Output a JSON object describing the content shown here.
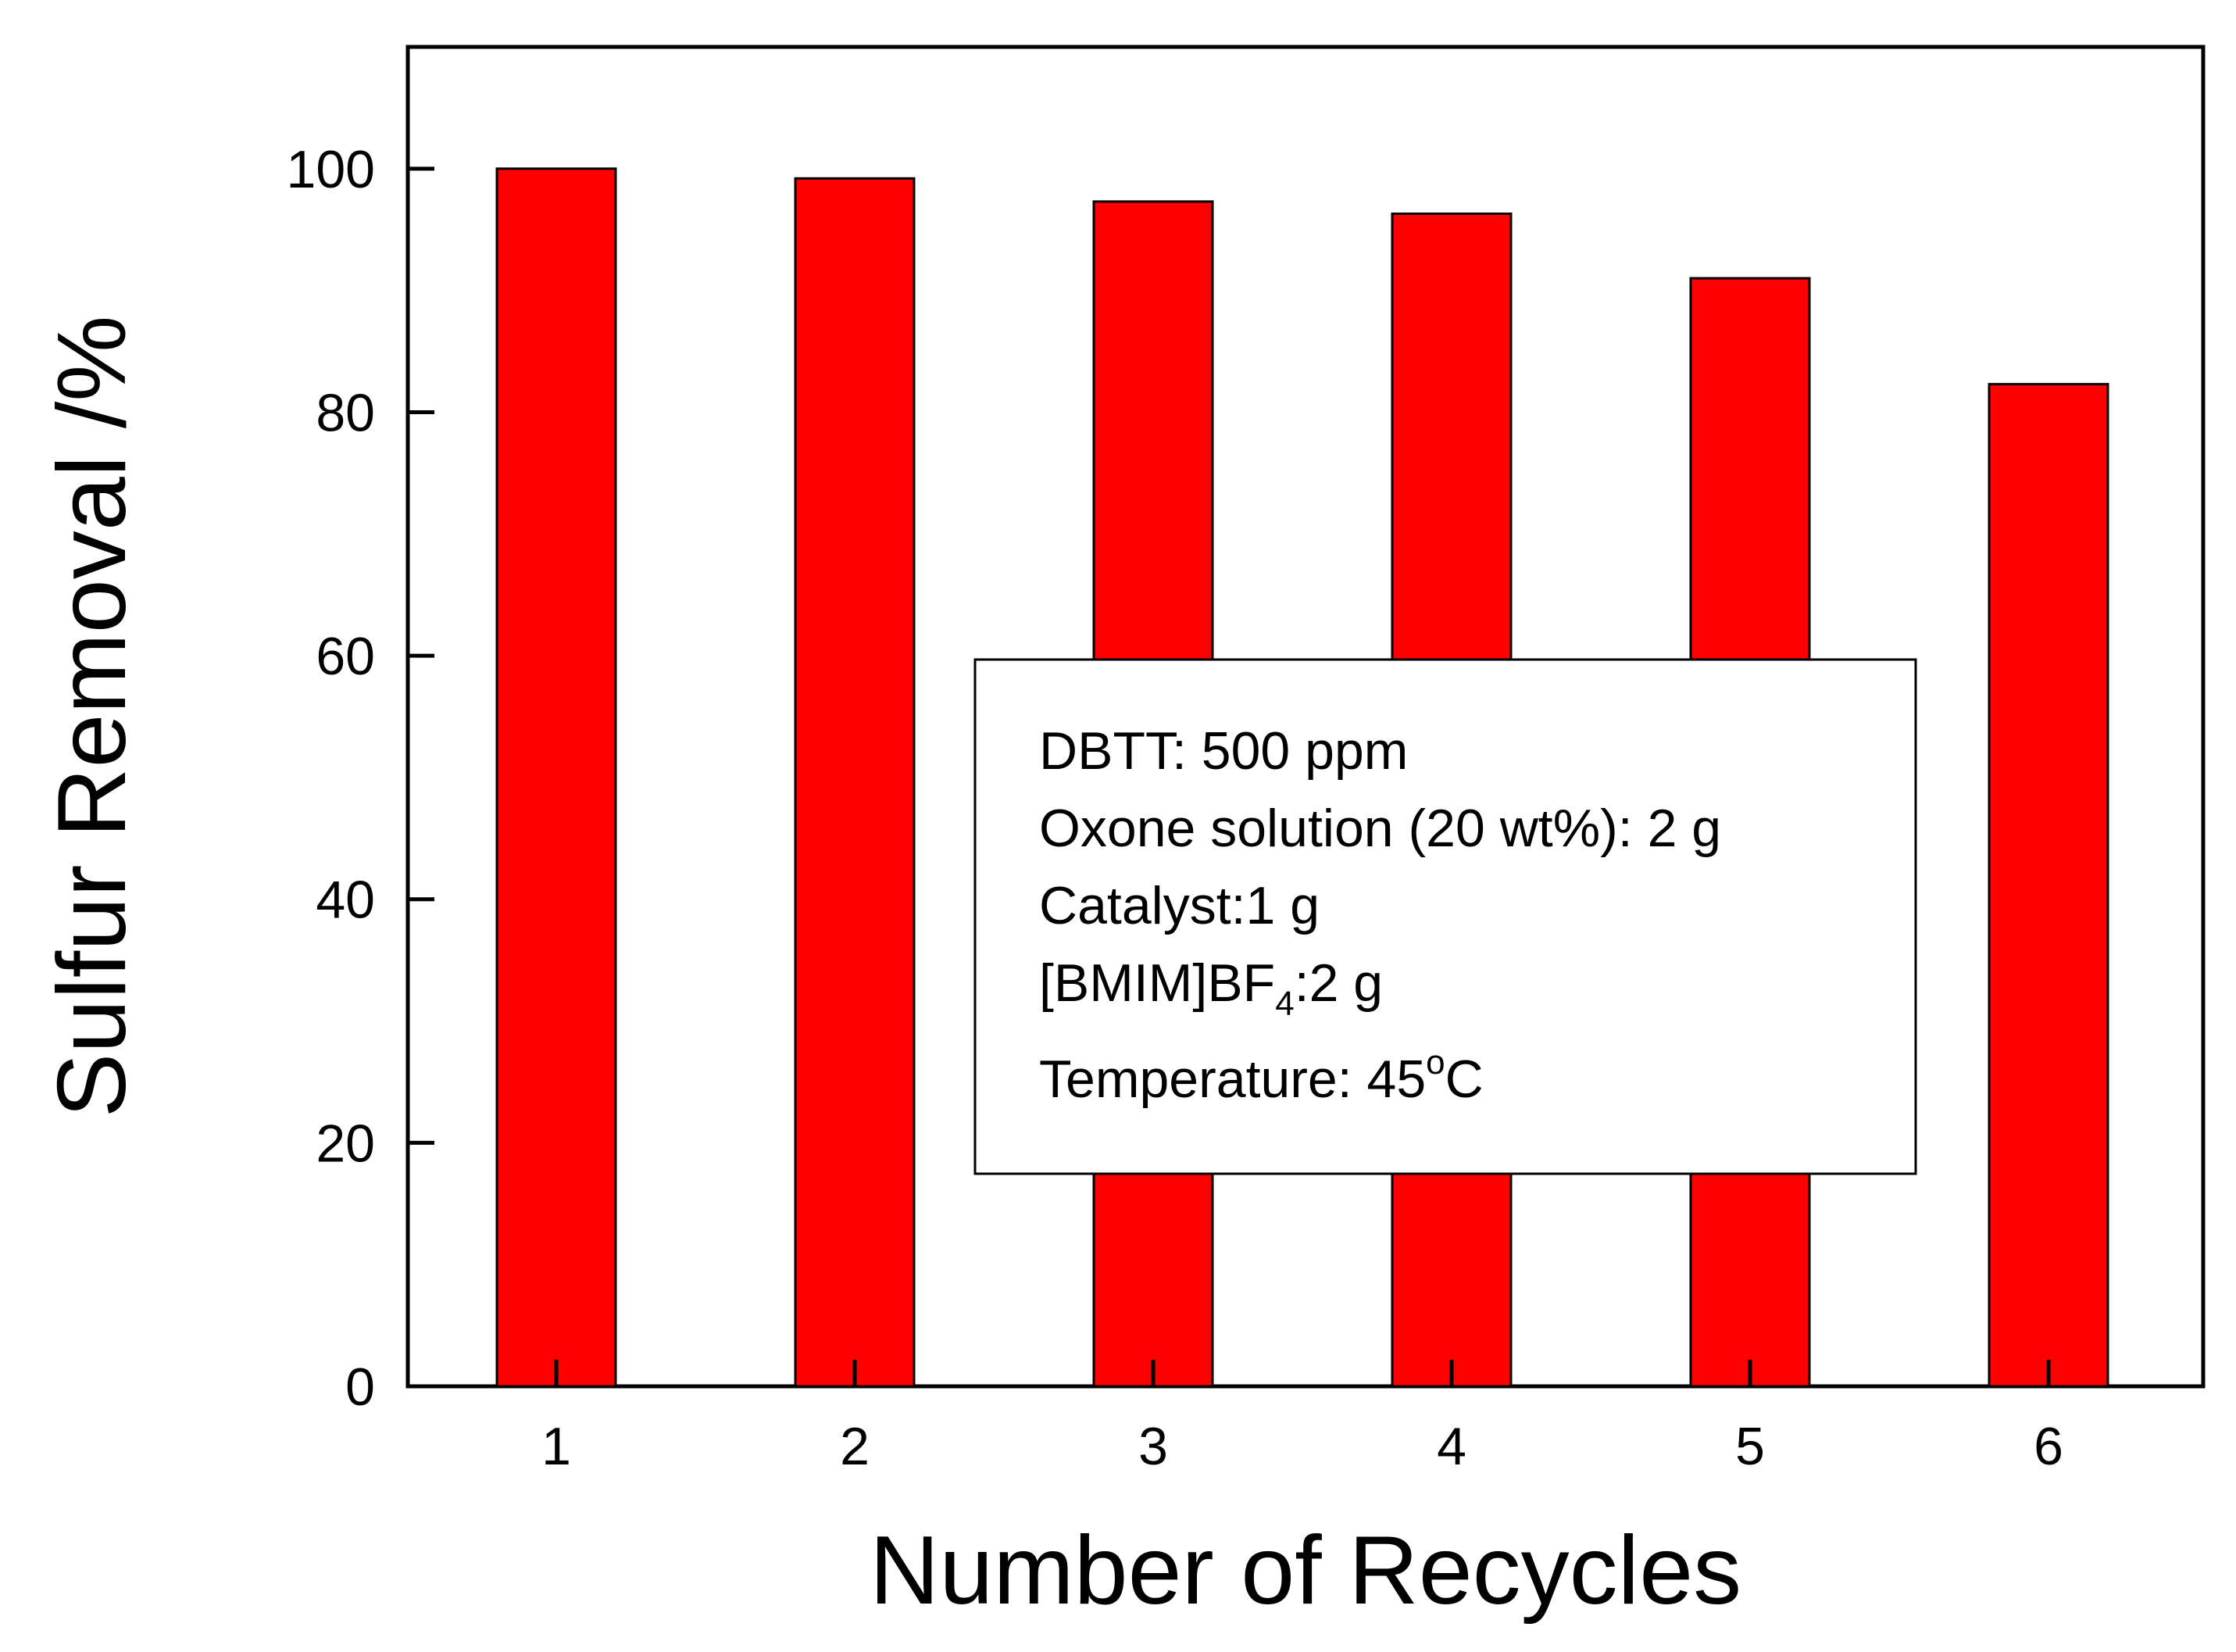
{
  "chart_data": {
    "type": "bar",
    "categories": [
      "1",
      "2",
      "3",
      "4",
      "5",
      "6"
    ],
    "values": [
      100,
      99.2,
      97.3,
      96.3,
      91.0,
      82.3
    ],
    "xlabel": "Number of Recycles",
    "ylabel": "Sulfur Removal /%",
    "ylim": [
      0,
      110
    ],
    "yticks": [
      0,
      20,
      40,
      60,
      80,
      100
    ],
    "bar_color": "#ff0000",
    "legend_position": "lower-center-right",
    "annotation": [
      {
        "text": "DBTT: 500 ppm"
      },
      {
        "text": "Oxone solution (20 wt%): 2 g"
      },
      {
        "text": "Catalyst:1 g"
      },
      {
        "text": "[BMIM]BF",
        "sub": "4",
        "after": ":2 g"
      },
      {
        "text": "Temperature: 45",
        "sup": "o",
        "after": "C"
      }
    ]
  }
}
